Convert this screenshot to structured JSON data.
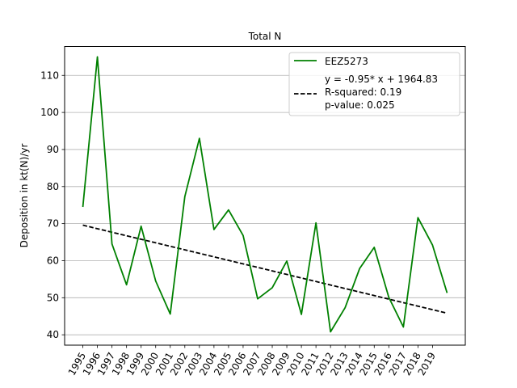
{
  "chart_data": {
    "type": "line",
    "title": "Total N",
    "xlabel": "",
    "ylabel": "Deposition in kt(N)/yr",
    "x": [
      1995,
      1996,
      1997,
      1998,
      1999,
      2000,
      2001,
      2002,
      2003,
      2004,
      2005,
      2006,
      2007,
      2008,
      2009,
      2010,
      2011,
      2012,
      2013,
      2014,
      2015,
      2016,
      2017,
      2018,
      2019,
      2020
    ],
    "xticks": [
      "1995",
      "1996",
      "1997",
      "1998",
      "1999",
      "2000",
      "2001",
      "2002",
      "2003",
      "2004",
      "2005",
      "2006",
      "2007",
      "2008",
      "2009",
      "2010",
      "2011",
      "2012",
      "2013",
      "2014",
      "2015",
      "2016",
      "2017",
      "2018",
      "2019"
    ],
    "yticks": [
      40,
      50,
      60,
      70,
      80,
      90,
      100,
      110
    ],
    "ylim": [
      37.2,
      117.8
    ],
    "xlim": [
      1993.75,
      2021.25
    ],
    "grid": "horizontal",
    "legend_position": "top-right",
    "series": [
      {
        "name": "EEZ5273",
        "color": "#008000",
        "style": "solid",
        "values": [
          74.5,
          115.0,
          64.5,
          53.5,
          69.3,
          54.5,
          45.6,
          77.3,
          93.0,
          68.4,
          73.7,
          66.8,
          49.7,
          52.7,
          59.9,
          45.5,
          70.2,
          40.8,
          47.3,
          57.9,
          63.6,
          50.1,
          42.1,
          71.6,
          64.2,
          51.3
        ]
      }
    ],
    "trend": {
      "color": "#000000",
      "style": "dashed",
      "slope": -0.95,
      "intercept": 1964.83,
      "x_start": 1995,
      "x_end": 2020,
      "legend_lines": [
        "y = -0.95* x + 1964.83",
        "R-squared: 0.19",
        "p-value: 0.025"
      ]
    }
  }
}
